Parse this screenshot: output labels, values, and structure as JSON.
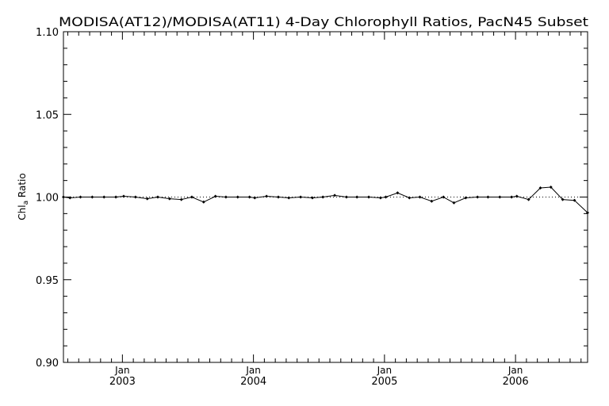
{
  "chart_data": {
    "type": "line",
    "title": "MODISA(AT12)/MODISA(AT11) 4-Day Chlorophyll Ratios, PacN45 Subset",
    "ylabel": {
      "main": "Chl",
      "sub": "a",
      "rest": " Ratio"
    },
    "xlabel": "",
    "ylim": [
      0.9,
      1.1
    ],
    "xlim": [
      2002.55,
      2006.55
    ],
    "y_ticks": [
      0.9,
      0.95,
      1.0,
      1.05,
      1.1
    ],
    "y_tick_labels": [
      "0.90",
      "0.95",
      "1.00",
      "1.05",
      "1.10"
    ],
    "x_major_ticks": [
      {
        "x": 2003.0,
        "month": "Jan",
        "year": "2003"
      },
      {
        "x": 2004.0,
        "month": "Jan",
        "year": "2004"
      },
      {
        "x": 2005.0,
        "month": "Jan",
        "year": "2005"
      },
      {
        "x": 2006.0,
        "month": "Jan",
        "year": "2006"
      }
    ],
    "reference_line": 1.0,
    "grid": false,
    "series": [
      {
        "x": [
          2002.55,
          2002.6,
          2002.68,
          2002.77,
          2002.86,
          2002.95,
          2003.01,
          2003.1,
          2003.19,
          2003.27,
          2003.36,
          2003.45,
          2003.53,
          2003.62,
          2003.71,
          2003.79,
          2003.88,
          2003.97,
          2004.01,
          2004.1,
          2004.19,
          2004.27,
          2004.36,
          2004.45,
          2004.53,
          2004.62,
          2004.71,
          2004.79,
          2004.88,
          2004.97,
          2005.01,
          2005.1,
          2005.19,
          2005.27,
          2005.36,
          2005.45,
          2005.53,
          2005.62,
          2005.71,
          2005.79,
          2005.88,
          2005.97,
          2006.01,
          2006.1,
          2006.19,
          2006.27,
          2006.36,
          2006.45,
          2006.55
        ],
        "y": [
          1.0,
          0.9995,
          1.0,
          1.0,
          1.0,
          1.0,
          1.0005,
          1.0,
          0.999,
          1.0,
          0.999,
          0.9985,
          1.0,
          0.997,
          1.0005,
          1.0,
          1.0,
          1.0,
          0.9995,
          1.0005,
          1.0,
          0.9995,
          1.0,
          0.9995,
          1.0,
          1.001,
          1.0,
          1.0,
          1.0,
          0.9995,
          1.0,
          1.0025,
          0.9995,
          1.0,
          0.9975,
          1.0,
          0.9965,
          0.9995,
          1.0,
          1.0,
          1.0,
          1.0,
          1.0005,
          0.9985,
          1.0055,
          1.006,
          0.9985,
          0.998,
          0.9905
        ]
      }
    ]
  }
}
